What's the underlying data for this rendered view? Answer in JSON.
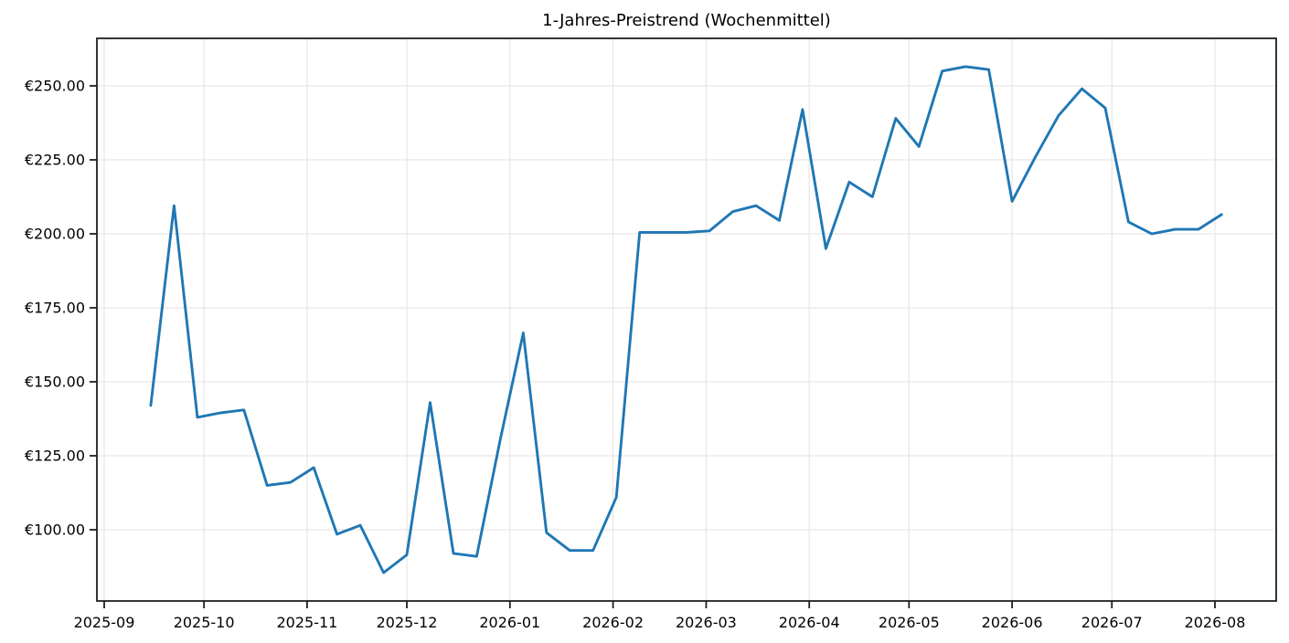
{
  "chart_data": {
    "type": "line",
    "title": "1-Jahres-Preistrend (Wochenmittel)",
    "series": [
      {
        "name": "Wochenmittel",
        "x": [
          "2025-09-15",
          "2025-09-22",
          "2025-09-29",
          "2025-10-06",
          "2025-10-13",
          "2025-10-20",
          "2025-10-27",
          "2025-11-03",
          "2025-11-10",
          "2025-11-17",
          "2025-11-24",
          "2025-12-01",
          "2025-12-08",
          "2025-12-15",
          "2025-12-22",
          "2025-12-29",
          "2026-01-05",
          "2026-01-12",
          "2026-01-19",
          "2026-01-26",
          "2026-02-02",
          "2026-02-09",
          "2026-02-16",
          "2026-02-23",
          "2026-03-02",
          "2026-03-09",
          "2026-03-16",
          "2026-03-23",
          "2026-03-30",
          "2026-04-06",
          "2026-04-13",
          "2026-04-20",
          "2026-04-27",
          "2026-05-04",
          "2026-05-11",
          "2026-05-18",
          "2026-05-25",
          "2026-06-01",
          "2026-06-08",
          "2026-06-15",
          "2026-06-22",
          "2026-06-29",
          "2026-07-06",
          "2026-07-13",
          "2026-07-20",
          "2026-07-27",
          "2026-08-03"
        ],
        "values": [
          142,
          209.5,
          138,
          139.5,
          140.5,
          115,
          116,
          121,
          98.5,
          101.5,
          85.5,
          91.5,
          143,
          92,
          91,
          130,
          166.5,
          99,
          93,
          93,
          111,
          200.5,
          200.5,
          200.5,
          201,
          207.5,
          209.5,
          204.5,
          242,
          195,
          217.5,
          212.5,
          239,
          229.5,
          255,
          256.5,
          255.5,
          211,
          226,
          240,
          249,
          242.5,
          204,
          200,
          201.5,
          201.5,
          206.5
        ]
      }
    ],
    "x_ticks": [
      {
        "date": "2025-09-01",
        "label": "2025-09"
      },
      {
        "date": "2025-10-01",
        "label": "2025-10"
      },
      {
        "date": "2025-11-01",
        "label": "2025-11"
      },
      {
        "date": "2025-12-01",
        "label": "2025-12"
      },
      {
        "date": "2026-01-01",
        "label": "2026-01"
      },
      {
        "date": "2026-02-01",
        "label": "2026-02"
      },
      {
        "date": "2026-03-01",
        "label": "2026-03"
      },
      {
        "date": "2026-04-01",
        "label": "2026-04"
      },
      {
        "date": "2026-05-01",
        "label": "2026-05"
      },
      {
        "date": "2026-06-01",
        "label": "2026-06"
      },
      {
        "date": "2026-07-01",
        "label": "2026-07"
      },
      {
        "date": "2026-08-01",
        "label": "2026-08"
      }
    ],
    "y_ticks": [
      {
        "value": 250,
        "label": "€250.00"
      },
      {
        "value": 225,
        "label": "€225.00"
      },
      {
        "value": 200,
        "label": "€200.00"
      },
      {
        "value": 175,
        "label": "€175.00"
      },
      {
        "value": 150,
        "label": "€150.00"
      },
      {
        "value": 125,
        "label": "€125.00"
      },
      {
        "value": 100,
        "label": "€100.00"
      }
    ],
    "ylim": [
      75.9,
      266.1
    ],
    "xlim_dates": [
      "2025-08-30",
      "2026-08-19"
    ],
    "grid": true,
    "legend_position": "none",
    "xlabel": "",
    "ylabel": "",
    "colors": {
      "line": "#1f77b4",
      "grid": "#e6e6e6",
      "spine": "#1f1f1f",
      "text": "#000000",
      "background": "#ffffff"
    }
  }
}
